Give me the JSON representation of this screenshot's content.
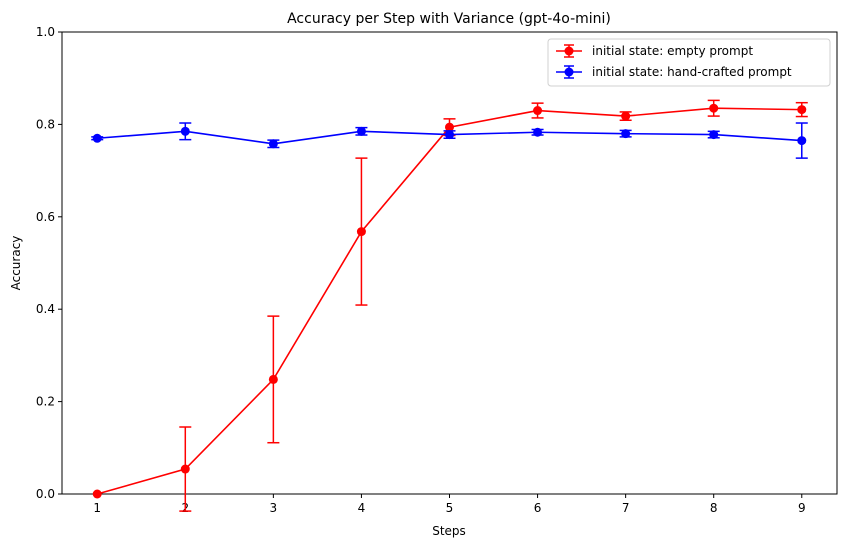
{
  "chart_data": {
    "type": "line",
    "title": "Accuracy per Step with Variance (gpt-4o-mini)",
    "xlabel": "Steps",
    "ylabel": "Accuracy",
    "xlim": [
      0.6,
      9.4
    ],
    "ylim": [
      0,
      1
    ],
    "x_ticks": [
      1,
      2,
      3,
      4,
      5,
      6,
      7,
      8,
      9
    ],
    "y_ticks": [
      0,
      0.2,
      0.4,
      0.6,
      0.8,
      1
    ],
    "y_tick_labels": [
      "0.0",
      "0.2",
      "0.4",
      "0.6",
      "0.8",
      "1.0"
    ],
    "grid": false,
    "legend_position": "top-right",
    "series": [
      {
        "name": "initial state: empty prompt",
        "color": "#ff0000",
        "x": [
          1,
          2,
          3,
          4,
          5,
          6,
          7,
          8,
          9
        ],
        "values": [
          0.0,
          0.054,
          0.248,
          0.568,
          0.794,
          0.83,
          0.818,
          0.835,
          0.832
        ],
        "errors": [
          0.0,
          0.091,
          0.137,
          0.159,
          0.018,
          0.016,
          0.009,
          0.017,
          0.015
        ]
      },
      {
        "name": "initial state: hand-crafted prompt",
        "color": "#0000ff",
        "x": [
          1,
          2,
          3,
          4,
          5,
          6,
          7,
          8,
          9
        ],
        "values": [
          0.77,
          0.785,
          0.758,
          0.785,
          0.778,
          0.783,
          0.78,
          0.778,
          0.765
        ],
        "errors": [
          0.003,
          0.018,
          0.008,
          0.008,
          0.008,
          0.006,
          0.007,
          0.007,
          0.038
        ]
      }
    ]
  }
}
